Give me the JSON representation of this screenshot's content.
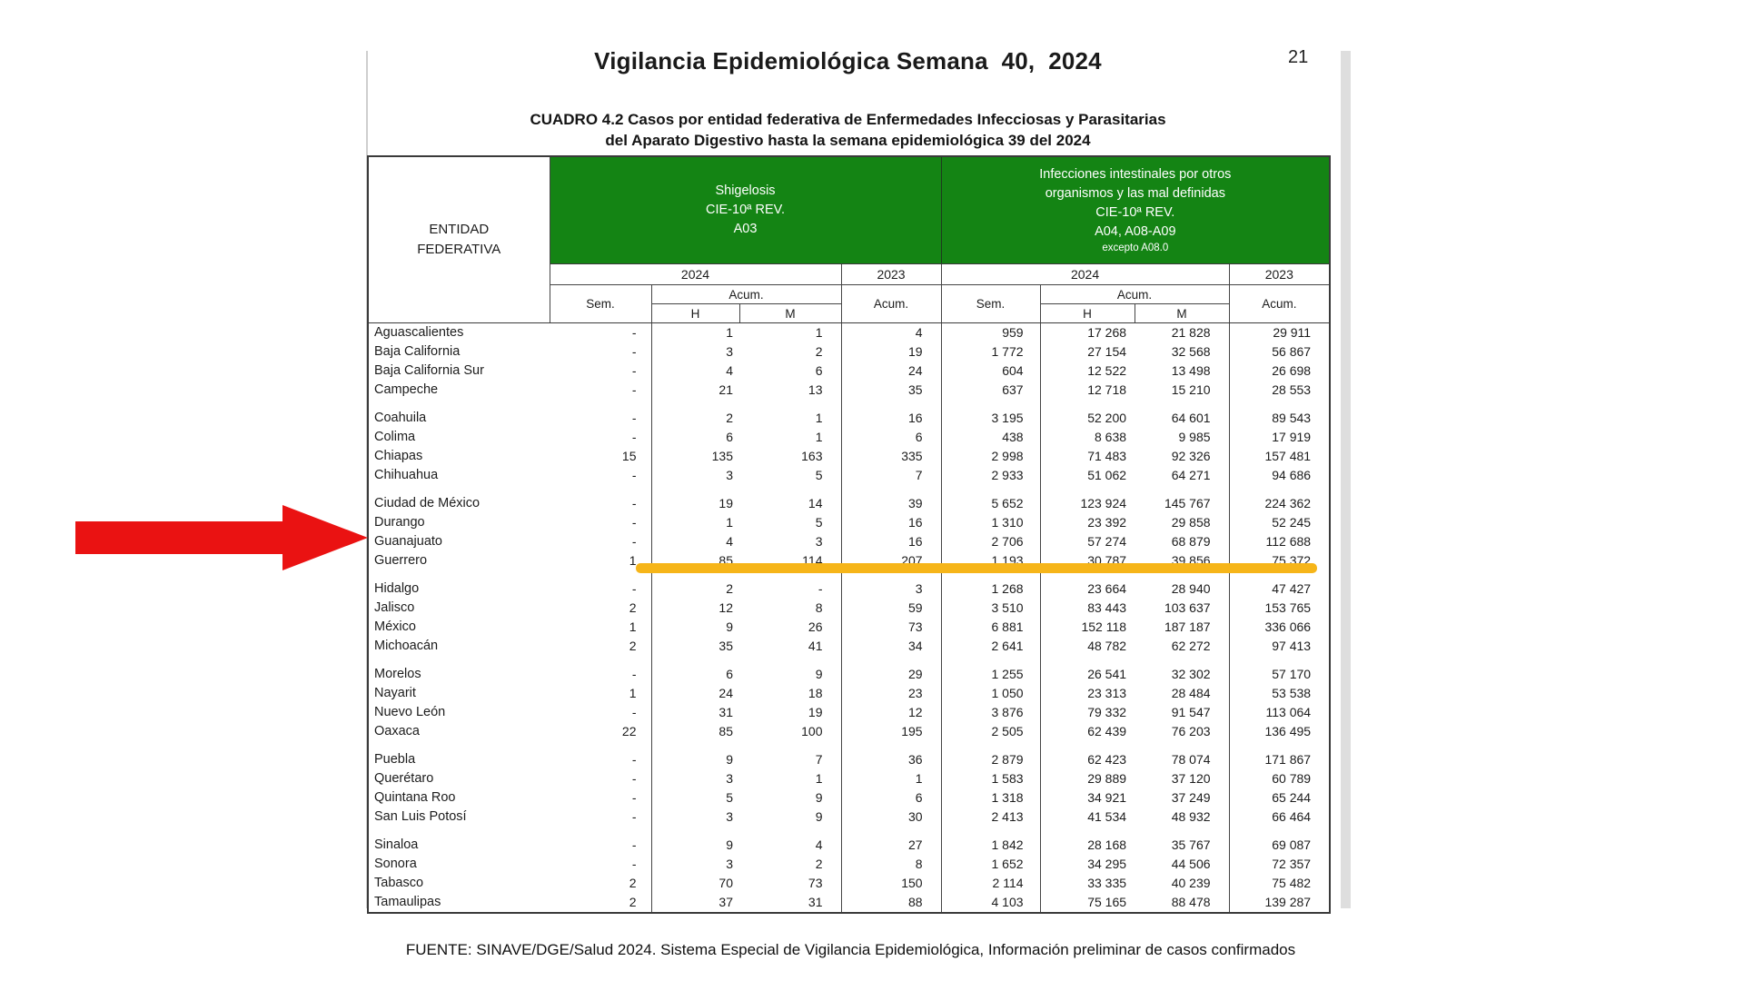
{
  "page": {
    "title": "Vigilancia Epidemiológica Semana  40,  2024",
    "page_number": "21",
    "subtitle_line1": "CUADRO 4.2  Casos por entidad federativa de Enfermedades Infecciosas y Parasitarias",
    "subtitle_line2": "del Aparato Digestivo hasta la semana epidemiológica 39 del 2024",
    "source": "FUENTE: SINAVE/DGE/Salud 2024. Sistema Especial de Vigilancia Epidemiológica, Información preliminar de casos confirmados"
  },
  "table": {
    "entity_header": "ENTIDAD\nFEDERATIVA",
    "groups": [
      {
        "title": "Shigelosis\nCIE-10ª REV.\nA03",
        "subnote": ""
      },
      {
        "title": "Infecciones intestinales por otros\norganismos y las mal definidas\nCIE-10ª REV.\nA04, A08-A09",
        "subnote": "excepto A08.0"
      }
    ],
    "labels": {
      "y2024": "2024",
      "y2023": "2023",
      "sem": "Sem.",
      "acum": "Acum.",
      "h": "H",
      "m": "M"
    },
    "columns_meaning": [
      "Shigelosis Sem.",
      "Shigelosis Acum. H",
      "Shigelosis Acum. M",
      "Shigelosis 2023 Acum.",
      "Infecciones Sem.",
      "Infecciones Acum. H",
      "Infecciones Acum. M",
      "Infecciones 2023 Acum."
    ],
    "row_groups": [
      [
        {
          "entity": "Aguascalientes",
          "v": [
            "-",
            "1",
            "1",
            "4",
            "959",
            "17 268",
            "21 828",
            "29 911"
          ]
        },
        {
          "entity": "Baja California",
          "v": [
            "-",
            "3",
            "2",
            "19",
            "1 772",
            "27 154",
            "32 568",
            "56 867"
          ]
        },
        {
          "entity": "Baja California Sur",
          "v": [
            "-",
            "4",
            "6",
            "24",
            "604",
            "12 522",
            "13 498",
            "26 698"
          ]
        },
        {
          "entity": "Campeche",
          "v": [
            "-",
            "21",
            "13",
            "35",
            "637",
            "12 718",
            "15 210",
            "28 553"
          ]
        }
      ],
      [
        {
          "entity": "Coahuila",
          "v": [
            "-",
            "2",
            "1",
            "16",
            "3 195",
            "52 200",
            "64 601",
            "89 543"
          ]
        },
        {
          "entity": "Colima",
          "v": [
            "-",
            "6",
            "1",
            "6",
            "438",
            "8 638",
            "9 985",
            "17 919"
          ]
        },
        {
          "entity": "Chiapas",
          "v": [
            "15",
            "135",
            "163",
            "335",
            "2 998",
            "71 483",
            "92 326",
            "157 481"
          ]
        },
        {
          "entity": "Chihuahua",
          "v": [
            "-",
            "3",
            "5",
            "7",
            "2 933",
            "51 062",
            "64 271",
            "94 686"
          ]
        }
      ],
      [
        {
          "entity": "Ciudad de México",
          "v": [
            "-",
            "19",
            "14",
            "39",
            "5 652",
            "123 924",
            "145 767",
            "224 362"
          ]
        },
        {
          "entity": "Durango",
          "v": [
            "-",
            "1",
            "5",
            "16",
            "1 310",
            "23 392",
            "29 858",
            "52 245"
          ]
        },
        {
          "entity": "Guanajuato",
          "v": [
            "-",
            "4",
            "3",
            "16",
            "2 706",
            "57 274",
            "68 879",
            "112 688"
          ]
        },
        {
          "entity": "Guerrero",
          "v": [
            "1",
            "85",
            "114",
            "207",
            "1 193",
            "30 787",
            "39 856",
            "75 372"
          ]
        }
      ],
      [
        {
          "entity": "Hidalgo",
          "v": [
            "-",
            "2",
            "-",
            "3",
            "1 268",
            "23 664",
            "28 940",
            "47 427"
          ]
        },
        {
          "entity": "Jalisco",
          "v": [
            "2",
            "12",
            "8",
            "59",
            "3 510",
            "83 443",
            "103 637",
            "153 765"
          ]
        },
        {
          "entity": "México",
          "v": [
            "1",
            "9",
            "26",
            "73",
            "6 881",
            "152 118",
            "187 187",
            "336 066"
          ]
        },
        {
          "entity": "Michoacán",
          "v": [
            "2",
            "35",
            "41",
            "34",
            "2 641",
            "48 782",
            "62 272",
            "97 413"
          ]
        }
      ],
      [
        {
          "entity": "Morelos",
          "v": [
            "-",
            "6",
            "9",
            "29",
            "1 255",
            "26 541",
            "32 302",
            "57 170"
          ]
        },
        {
          "entity": "Nayarit",
          "v": [
            "1",
            "24",
            "18",
            "23",
            "1 050",
            "23 313",
            "28 484",
            "53 538"
          ]
        },
        {
          "entity": "Nuevo León",
          "v": [
            "-",
            "31",
            "19",
            "12",
            "3 876",
            "79 332",
            "91 547",
            "113 064"
          ]
        },
        {
          "entity": "Oaxaca",
          "v": [
            "22",
            "85",
            "100",
            "195",
            "2 505",
            "62 439",
            "76 203",
            "136 495"
          ]
        }
      ],
      [
        {
          "entity": "Puebla",
          "v": [
            "-",
            "9",
            "7",
            "36",
            "2 879",
            "62 423",
            "78 074",
            "171 867"
          ]
        },
        {
          "entity": "Querétaro",
          "v": [
            "-",
            "3",
            "1",
            "1",
            "1 583",
            "29 889",
            "37 120",
            "60 789"
          ]
        },
        {
          "entity": "Quintana Roo",
          "v": [
            "-",
            "5",
            "9",
            "6",
            "1 318",
            "34 921",
            "37 249",
            "65 244"
          ]
        },
        {
          "entity": "San Luis Potosí",
          "v": [
            "-",
            "3",
            "9",
            "30",
            "2 413",
            "41 534",
            "48 932",
            "66 464"
          ]
        }
      ],
      [
        {
          "entity": "Sinaloa",
          "v": [
            "-",
            "9",
            "4",
            "27",
            "1 842",
            "28 168",
            "35 767",
            "69 087"
          ]
        },
        {
          "entity": "Sonora",
          "v": [
            "-",
            "3",
            "2",
            "8",
            "1 652",
            "34 295",
            "44 506",
            "72 357"
          ]
        },
        {
          "entity": "Tabasco",
          "v": [
            "2",
            "70",
            "73",
            "150",
            "2 114",
            "33 335",
            "40 239",
            "75 482"
          ]
        },
        {
          "entity": "Tamaulipas",
          "v": [
            "2",
            "37",
            "31",
            "88",
            "4 103",
            "75 165",
            "88 478",
            "139 287"
          ]
        }
      ]
    ]
  },
  "annotations": {
    "highlighted_entity": "Guerrero",
    "highlight_color": "#f6b519",
    "arrow_color": "#ea1212"
  },
  "colors": {
    "header_green": "#148414",
    "header_text": "#ffffff",
    "border": "#3a3a3a"
  }
}
